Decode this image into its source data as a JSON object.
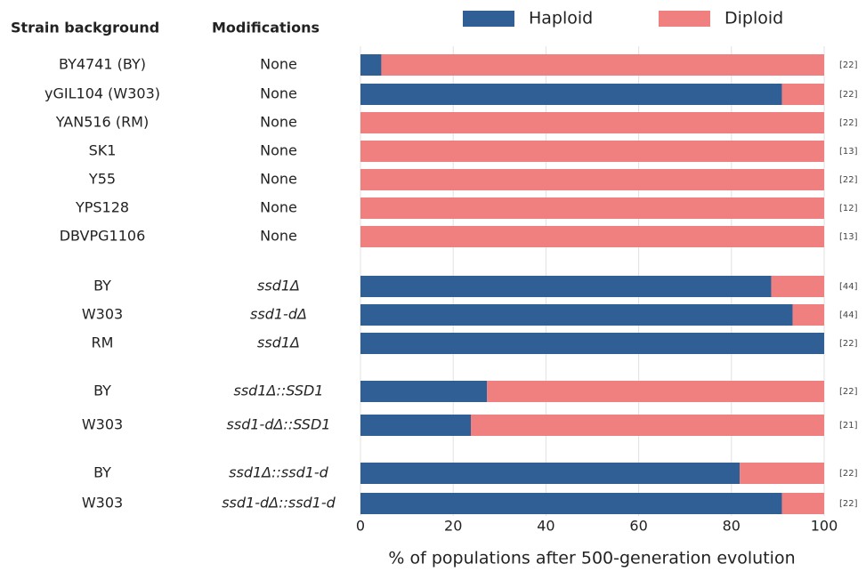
{
  "chart_data": {
    "type": "stacked_barh",
    "column_headers": [
      "Strain background",
      "Modifications"
    ],
    "categories": [
      "BY4741 (BY)",
      "yGIL104 (W303)",
      "YAN516 (RM)",
      "SK1",
      "Y55",
      "YPS128",
      "DBVPG1106",
      "BY",
      "W303",
      "RM",
      "BY",
      "W303",
      "BY",
      "W303"
    ],
    "modifications": [
      "None",
      "None",
      "None",
      "None",
      "None",
      "None",
      "None",
      "ssd1Δ",
      "ssd1-dΔ",
      "ssd1Δ",
      "ssd1Δ::SSD1",
      "ssd1-dΔ::SSD1",
      "ssd1Δ::ssd1-d",
      "ssd1-dΔ::ssd1-d"
    ],
    "n_labels": [
      "[22]",
      "[22]",
      "[22]",
      "[13]",
      "[22]",
      "[12]",
      "[13]",
      "[44]",
      "[44]",
      "[22]",
      "[22]",
      "[21]",
      "[22]",
      "[22]"
    ],
    "series": [
      {
        "name": "Haploid",
        "color": "#2f5f94",
        "values": [
          4.5,
          90.9,
          0,
          0,
          0,
          0,
          0,
          88.6,
          93.2,
          100,
          27.3,
          23.8,
          81.8,
          90.9
        ]
      },
      {
        "name": "Diploid",
        "color": "#f08080",
        "values": [
          95.5,
          9.1,
          100,
          100,
          100,
          100,
          100,
          11.4,
          6.8,
          0,
          72.7,
          76.2,
          18.2,
          9.1
        ]
      }
    ],
    "xlim": [
      0,
      100
    ],
    "xticks": [
      0,
      20,
      40,
      60,
      80,
      100
    ],
    "xlabel": "% of populations after 500-generation evolution",
    "grid": true
  }
}
